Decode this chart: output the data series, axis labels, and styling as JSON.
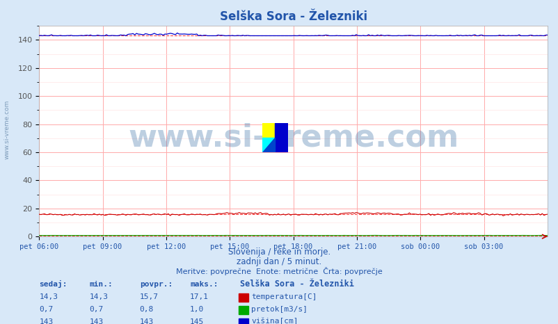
{
  "title": "Selška Sora - Železniki",
  "background_color": "#d8e8f8",
  "plot_bg_color": "#ffffff",
  "grid_color_major": "#ffaaaa",
  "grid_color_minor": "#ffdddd",
  "ylabel_color": "#555555",
  "ylim": [
    0,
    150
  ],
  "yticks": [
    0,
    20,
    40,
    60,
    80,
    100,
    120,
    140
  ],
  "x_labels": [
    "pet 06:00",
    "pet 09:00",
    "pet 12:00",
    "pet 15:00",
    "pet 18:00",
    "pet 21:00",
    "sob 00:00",
    "sob 03:00"
  ],
  "n_points": 288,
  "temp_value": 15.7,
  "temp_min": 14.3,
  "temp_max": 17.1,
  "temp_sed": 14.3,
  "pretok_value": 0.8,
  "pretok_min": 0.7,
  "pretok_max": 1.0,
  "pretok_sed": 0.7,
  "visina_value": 143,
  "visina_min": 143,
  "visina_max": 145,
  "visina_sed": 143,
  "temp_color": "#cc0000",
  "pretok_color": "#00aa00",
  "visina_color": "#0000cc",
  "dashed_color": "#ff4444",
  "subtitle1": "Slovenija / reke in morje.",
  "subtitle2": "zadnji dan / 5 minut.",
  "subtitle3": "Meritve: povprečne  Enote: metrične  Črta: povprečje",
  "legend_title": "Selška Sora - Železniki",
  "watermark": "www.si-vreme.com",
  "watermark_color": "#4477aa",
  "left_label": "www.si-vreme.com",
  "title_color": "#2255aa",
  "subtitle_color": "#2255aa",
  "table_color": "#2255aa"
}
